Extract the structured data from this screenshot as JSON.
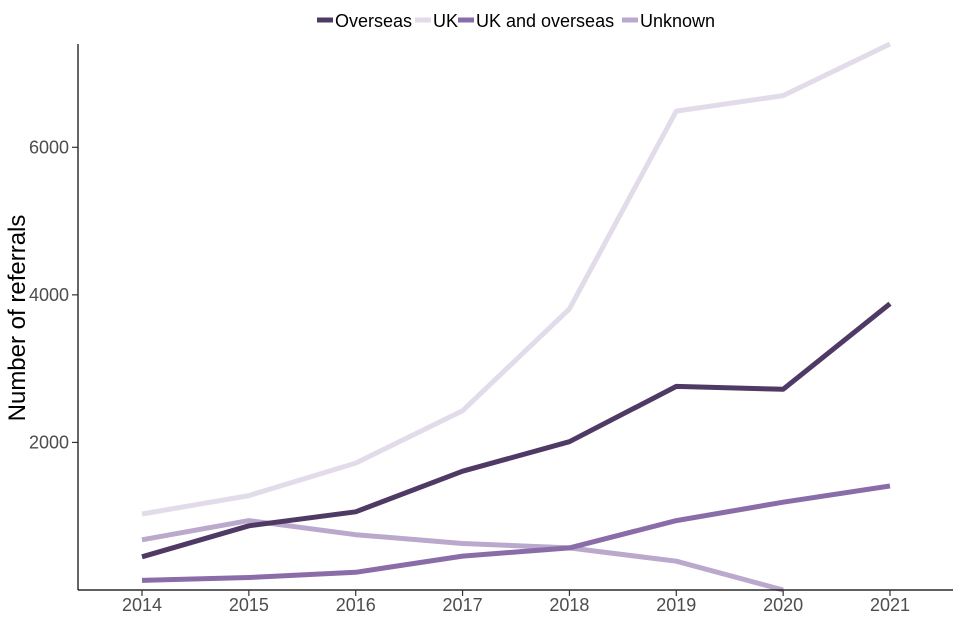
{
  "chart_data": {
    "type": "line",
    "title": "",
    "xlabel": "",
    "ylabel": "Number of referrals",
    "x": [
      "2014",
      "2015",
      "2016",
      "2017",
      "2018",
      "2019",
      "2020",
      "2021"
    ],
    "ylim": [
      0,
      7400
    ],
    "yticks": [
      2000,
      4000,
      6000
    ],
    "grid": false,
    "legend_position": "top",
    "series": [
      {
        "name": "Overseas",
        "color": "#4e3a64",
        "values": [
          450,
          870,
          1060,
          1610,
          2010,
          2760,
          2720,
          3880
        ]
      },
      {
        "name": "UK",
        "color": "#e2dcea",
        "values": [
          1030,
          1280,
          1720,
          2430,
          3810,
          6490,
          6700,
          7400
        ]
      },
      {
        "name": "UK and overseas",
        "color": "#8a6da8",
        "values": [
          130,
          170,
          240,
          460,
          570,
          940,
          1190,
          1410
        ]
      },
      {
        "name": "Unknown",
        "color": "#baa8cd",
        "values": [
          680,
          940,
          750,
          630,
          570,
          390,
          0,
          null
        ]
      }
    ]
  }
}
